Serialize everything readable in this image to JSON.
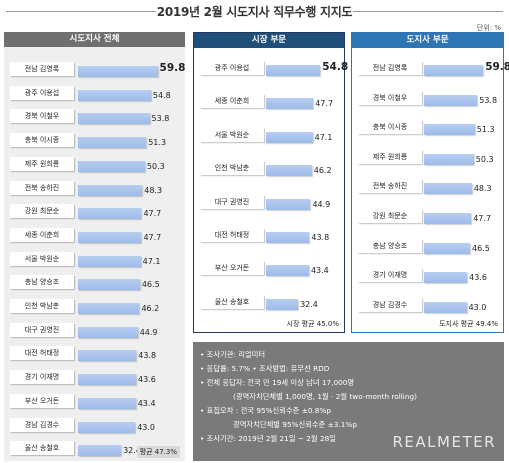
{
  "title": "2019년 2월 시도지사 직무수행 지지도",
  "unit": "단위: %",
  "panels": {
    "all": {
      "header": "시도지사 전체",
      "avg_label": "평균 47.3%"
    },
    "city": {
      "header": "시장 부문",
      "avg_label": "시장 평균 45.0%"
    },
    "prov": {
      "header": "도지사 부문",
      "avg_label": "도지사 평균 49.4%"
    }
  },
  "colors": {
    "bar": "#9dbbea",
    "panel_all": "#6f6f6f",
    "panel_city": "#1f4e79",
    "panel_prov": "#2e75b6",
    "info_bg": "#7a7a7a"
  },
  "chart_data": [
    {
      "type": "bar",
      "title": "시도지사 전체",
      "categories": [
        "전남 김영록",
        "광주 이용섭",
        "경북 이철우",
        "충북 이시종",
        "제주 원희룡",
        "전북 송하진",
        "강원 최문순",
        "세종 이춘희",
        "서울 박원순",
        "충남 양승조",
        "인천 박남춘",
        "대구 권영진",
        "대전 허태정",
        "경기 이재명",
        "부산 오거돈",
        "경남 김경수",
        "울산 송철호"
      ],
      "values": [
        59.8,
        54.8,
        53.8,
        51.3,
        50.3,
        48.3,
        47.7,
        47.7,
        47.1,
        46.5,
        46.2,
        44.9,
        43.8,
        43.6,
        43.4,
        43.0,
        32.4
      ],
      "annotations": [
        "평균 47.3%"
      ]
    },
    {
      "type": "bar",
      "title": "시장 부문",
      "categories": [
        "광주 이용섭",
        "세종 이춘희",
        "서울 박원순",
        "인천 박남춘",
        "대구 권영진",
        "대전 허태정",
        "부산 오거돈",
        "울산 송철호"
      ],
      "values": [
        54.8,
        47.7,
        47.1,
        46.2,
        44.9,
        43.8,
        43.4,
        32.4
      ],
      "annotations": [
        "시장 평균 45.0%"
      ]
    },
    {
      "type": "bar",
      "title": "도지사 부문",
      "categories": [
        "전남 김영록",
        "경북 이철우",
        "충북 이시종",
        "제주 원희룡",
        "전북 송하진",
        "강원 최문순",
        "충남 양승조",
        "경기 이재명",
        "경남 김경수"
      ],
      "values": [
        59.8,
        53.8,
        51.3,
        50.3,
        48.3,
        47.7,
        46.5,
        43.6,
        43.0
      ],
      "annotations": [
        "도지사 평균 49.4%"
      ]
    }
  ],
  "info": {
    "lines": [
      "• 조사기관: 리얼미터",
      "• 응답률: 5.7% • 조사방법: 유무선 RDD",
      "• 전체 응답자: 전국 만 19세 이상 남녀 17,000명",
      "(광역자치단체별 1,000명, 1월 · 2월 two-month rolling)",
      "• 표집오차 : 전국 95%신뢰수준 ±0.8%p",
      "광역자치단체별 95%신뢰수준 ±3.1%p",
      "• 조사기간: 2019년 2월 21일 ~ 2월 28일"
    ],
    "logo": "REALMETER"
  }
}
